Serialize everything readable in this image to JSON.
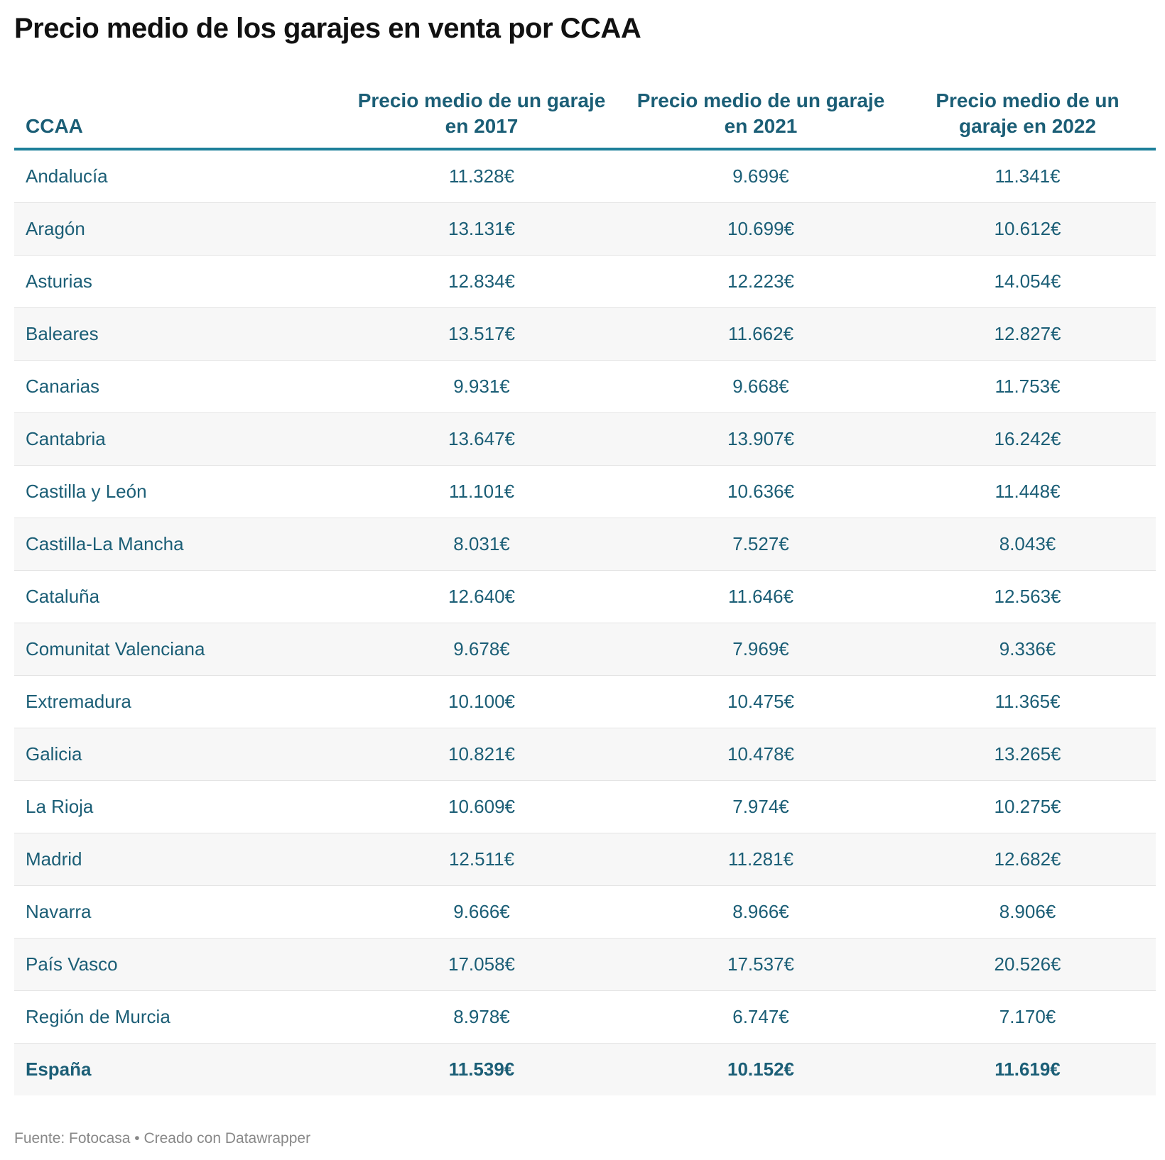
{
  "title": "Precio medio de los garajes en venta por CCAA",
  "columns": [
    "CCAA",
    "Precio medio de un garaje en 2017",
    "Precio medio de un garaje en 2021",
    "Precio medio de un garaje en 2022"
  ],
  "rows": [
    [
      "Andalucía",
      "11.328€",
      "9.699€",
      "11.341€"
    ],
    [
      "Aragón",
      "13.131€",
      "10.699€",
      "10.612€"
    ],
    [
      "Asturias",
      "12.834€",
      "12.223€",
      "14.054€"
    ],
    [
      "Baleares",
      "13.517€",
      "11.662€",
      "12.827€"
    ],
    [
      "Canarias",
      "9.931€",
      "9.668€",
      "11.753€"
    ],
    [
      "Cantabria",
      "13.647€",
      "13.907€",
      "16.242€"
    ],
    [
      "Castilla y León",
      "11.101€",
      "10.636€",
      "11.448€"
    ],
    [
      "Castilla-La Mancha",
      "8.031€",
      "7.527€",
      "8.043€"
    ],
    [
      "Cataluña",
      "12.640€",
      "11.646€",
      "12.563€"
    ],
    [
      "Comunitat Valenciana",
      "9.678€",
      "7.969€",
      "9.336€"
    ],
    [
      "Extremadura",
      "10.100€",
      "10.475€",
      "11.365€"
    ],
    [
      "Galicia",
      "10.821€",
      "10.478€",
      "13.265€"
    ],
    [
      "La Rioja",
      "10.609€",
      "7.974€",
      "10.275€"
    ],
    [
      "Madrid",
      "12.511€",
      "11.281€",
      "12.682€"
    ],
    [
      "Navarra",
      "9.666€",
      "8.966€",
      "8.906€"
    ],
    [
      "País Vasco",
      "17.058€",
      "17.537€",
      "20.526€"
    ],
    [
      "Región de Murcia",
      "8.978€",
      "6.747€",
      "7.170€"
    ],
    [
      "España",
      "11.539€",
      "10.152€",
      "11.619€"
    ]
  ],
  "footer": "Fuente: Fotocasa • Creado con Datawrapper",
  "colors": {
    "text": "#1b5e76",
    "header_rule": "#1d7f9a",
    "stripe": "#f7f7f7"
  }
}
